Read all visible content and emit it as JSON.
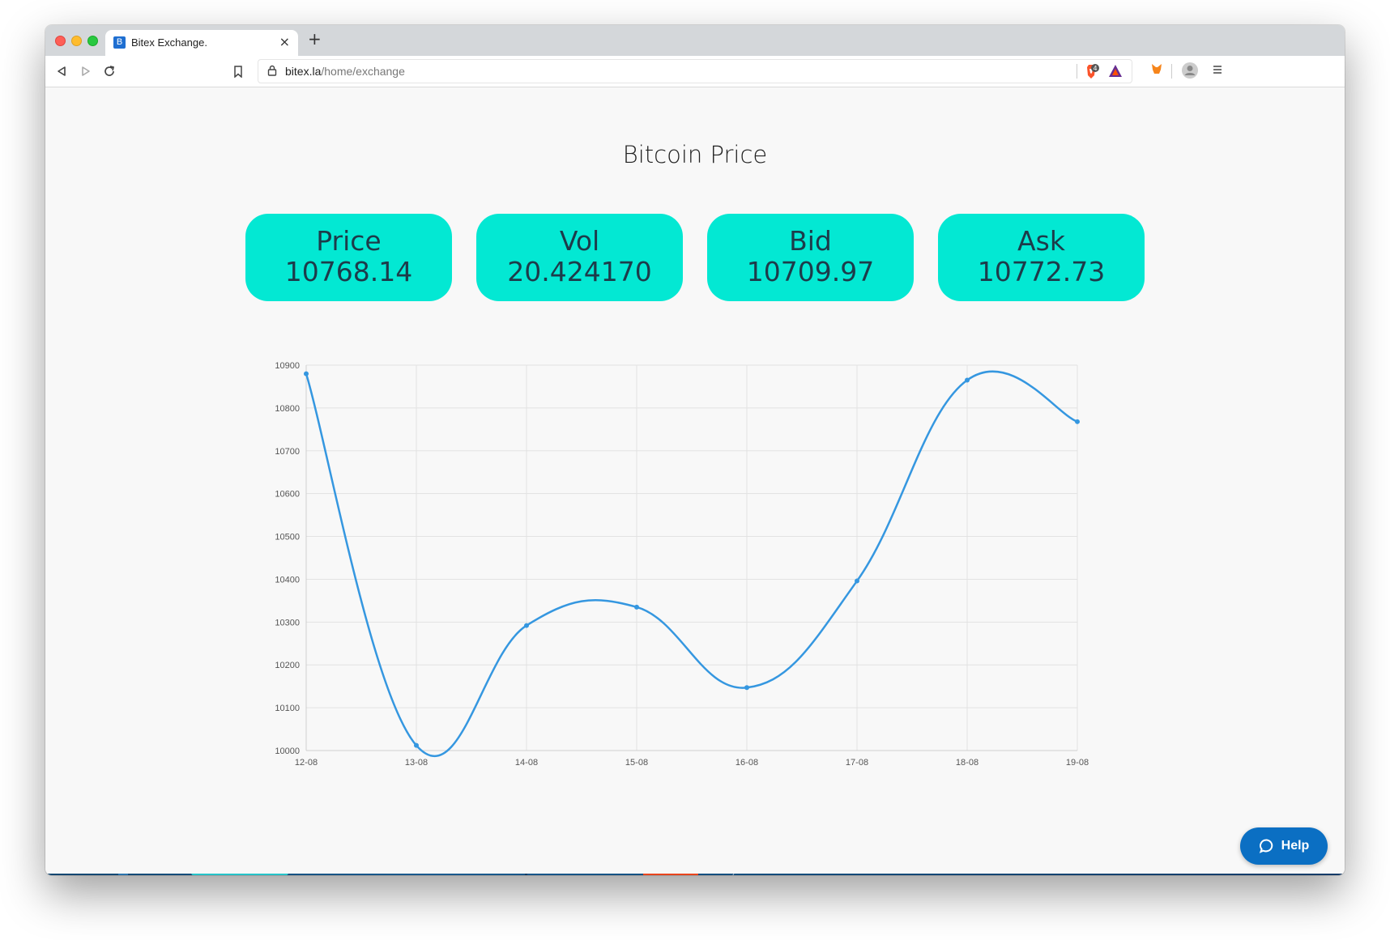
{
  "browser": {
    "tab_title": "Bitex Exchange.",
    "tab_favicon_letter": "B",
    "url_host": "bitex.la",
    "url_path": "/home/exchange",
    "brave_badge": "4"
  },
  "page": {
    "title": "Bitcoin Price",
    "stats": [
      {
        "label": "Price",
        "value": "10768.14"
      },
      {
        "label": "Vol",
        "value": "20.424170"
      },
      {
        "label": "Bid",
        "value": "10709.97"
      },
      {
        "label": "Ask",
        "value": "10772.73"
      }
    ],
    "card_color": "#03e8d3"
  },
  "help": {
    "label": "Help"
  },
  "chart_data": {
    "type": "line",
    "categories": [
      "12-08",
      "13-08",
      "14-08",
      "15-08",
      "16-08",
      "17-08",
      "18-08",
      "19-08"
    ],
    "values": [
      10880,
      10012,
      10292,
      10335,
      10147,
      10396,
      10865,
      10768
    ],
    "ylim": [
      10000,
      10900
    ],
    "yticks": [
      10900,
      10800,
      10700,
      10600,
      10500,
      10400,
      10300,
      10200,
      10100,
      10000
    ],
    "grid": true,
    "line_color": "#3597e0",
    "smooth": true
  }
}
